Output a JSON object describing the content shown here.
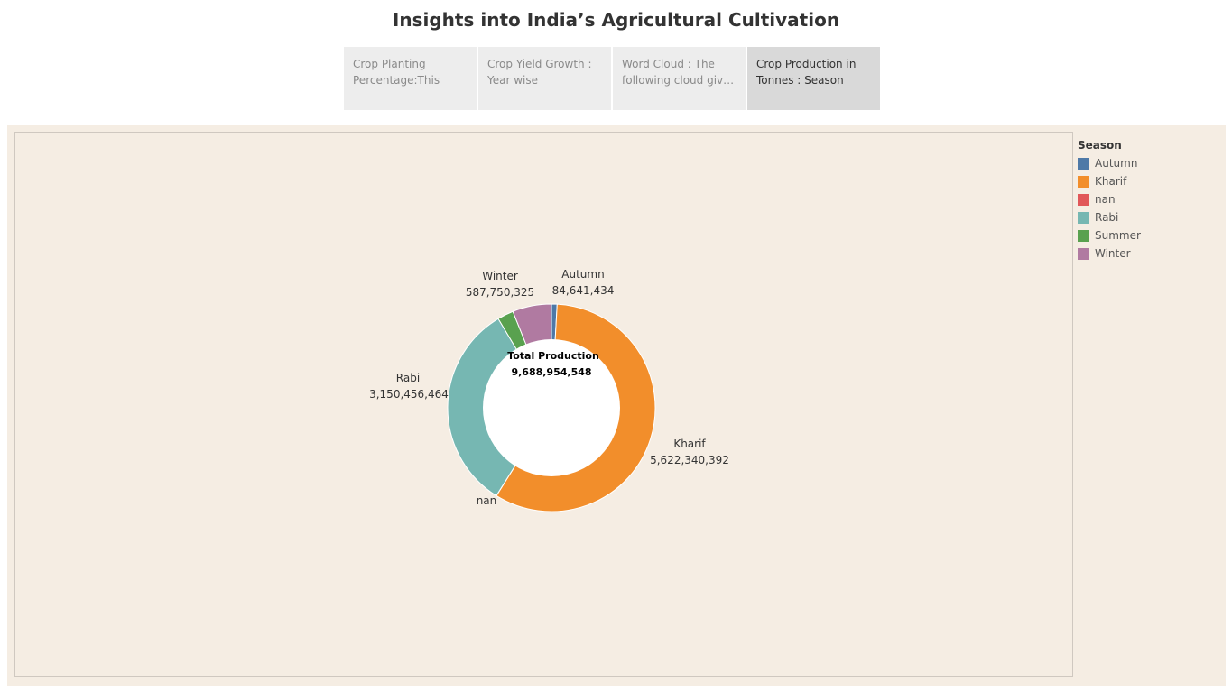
{
  "page": {
    "title": "Insights into India’s Agricultural Cultivation"
  },
  "tabs": [
    {
      "label": "Crop Planting Percentage:This",
      "active": false
    },
    {
      "label": "Crop Yield Growth : Year wise",
      "active": false
    },
    {
      "label": "Word Cloud : The following cloud gives ..",
      "active": false
    },
    {
      "label": "Crop Production in Tonnes : Season",
      "active": true
    }
  ],
  "legend": {
    "title": "Season",
    "items": [
      {
        "label": "Autumn",
        "color": "#4e79a7"
      },
      {
        "label": "Kharif",
        "color": "#f28e2b"
      },
      {
        "label": "nan",
        "color": "#e15759"
      },
      {
        "label": "Rabi",
        "color": "#76b7b2"
      },
      {
        "label": "Summer",
        "color": "#59a14f"
      },
      {
        "label": "Winter",
        "color": "#b07aa1"
      }
    ]
  },
  "chart_data": {
    "type": "pie",
    "donut": true,
    "center_title": "Total Production",
    "center_value": "9,688,954,548",
    "slices": [
      {
        "name": "Autumn",
        "value": 84641434,
        "label": "84,641,434",
        "color": "#4e79a7"
      },
      {
        "name": "Kharif",
        "value": 5622340392,
        "label": "5,622,340,392",
        "color": "#f28e2b"
      },
      {
        "name": "nan",
        "value": 1000000,
        "label": "",
        "color": "#e15759"
      },
      {
        "name": "Rabi",
        "value": 3150456464,
        "label": "3,150,456,464",
        "color": "#76b7b2"
      },
      {
        "name": "Summer",
        "value": 243000000,
        "label": "",
        "color": "#59a14f"
      },
      {
        "name": "Winter",
        "value": 587750325,
        "label": "587,750,325",
        "color": "#b07aa1"
      }
    ],
    "legend_position": "right"
  }
}
